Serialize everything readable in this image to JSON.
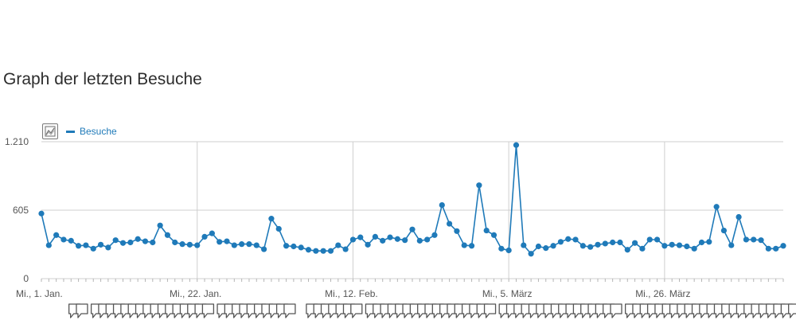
{
  "page": {
    "title": "Graph der letzten Besuche"
  },
  "toolbar": {
    "chart_type_icon": "line-chart-icon"
  },
  "colors": {
    "series": "#1f7ab9",
    "grid": "#cfcfcf",
    "annotation": "#555555"
  },
  "chart_data": {
    "type": "line",
    "title": "",
    "xlabel": "",
    "ylabel": "",
    "ylim": [
      0,
      1210
    ],
    "yticks": [
      {
        "value": 0,
        "label": "0"
      },
      {
        "value": 605,
        "label": "605"
      },
      {
        "value": 1210,
        "label": "1.210"
      }
    ],
    "xticks": [
      {
        "index": 0,
        "label": "Mi., 1. Jan."
      },
      {
        "index": 21,
        "label": "Mi., 22. Jan."
      },
      {
        "index": 42,
        "label": "Mi., 12. Feb."
      },
      {
        "index": 63,
        "label": "Mi., 5. März"
      },
      {
        "index": 84,
        "label": "Mi., 26. März"
      }
    ],
    "grid": true,
    "legend": "top-left",
    "series": [
      {
        "name": "Besuche",
        "values": [
          575,
          295,
          385,
          345,
          335,
          290,
          295,
          265,
          300,
          275,
          340,
          315,
          320,
          350,
          330,
          320,
          470,
          385,
          320,
          305,
          300,
          295,
          370,
          400,
          325,
          330,
          295,
          305,
          305,
          295,
          260,
          530,
          440,
          290,
          285,
          275,
          255,
          245,
          245,
          245,
          295,
          260,
          345,
          365,
          300,
          370,
          335,
          365,
          350,
          340,
          435,
          335,
          345,
          385,
          650,
          485,
          420,
          295,
          290,
          825,
          425,
          385,
          265,
          250,
          1180,
          295,
          220,
          285,
          270,
          290,
          325,
          350,
          345,
          290,
          280,
          300,
          310,
          320,
          320,
          255,
          315,
          265,
          345,
          345,
          290,
          300,
          295,
          285,
          265,
          320,
          325,
          635,
          425,
          295,
          545,
          345,
          345,
          340,
          265,
          265,
          290
        ]
      }
    ],
    "annotation_markers": {
      "groups": [
        {
          "from": 2,
          "to": 3
        },
        {
          "from": 5,
          "to": 20
        },
        {
          "from": 22,
          "to": 31
        },
        {
          "from": 34,
          "to": 40
        },
        {
          "from": 42,
          "to": 58
        },
        {
          "from": 60,
          "to": 75
        },
        {
          "from": 77,
          "to": 104
        }
      ]
    }
  }
}
